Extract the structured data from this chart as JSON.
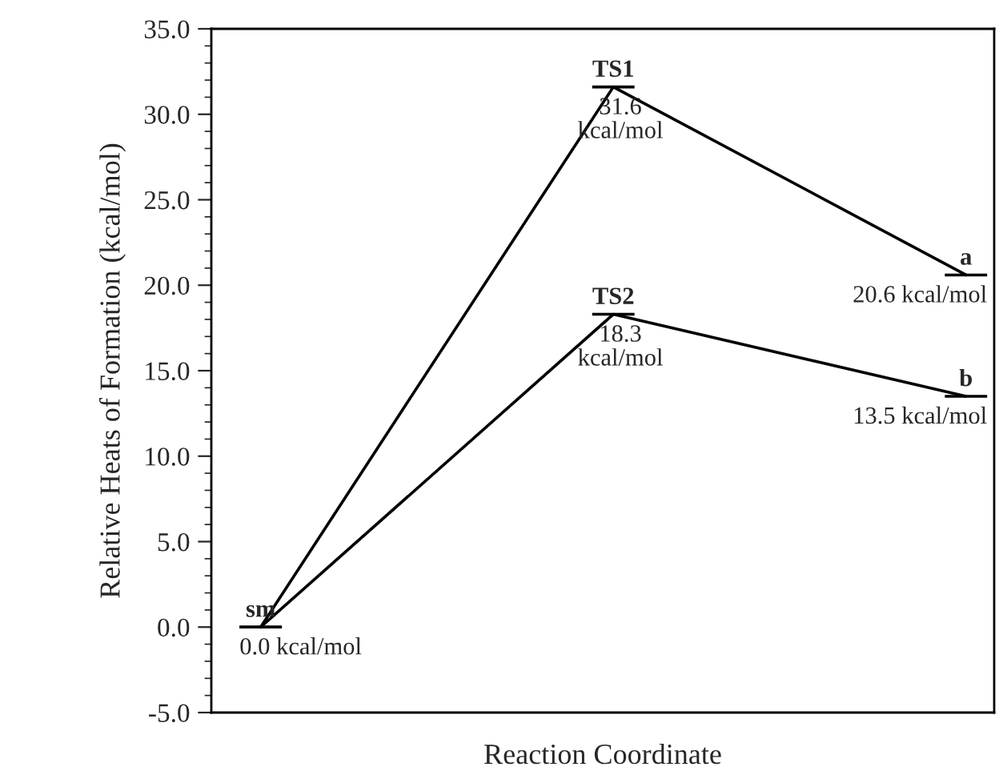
{
  "chart_data": {
    "type": "line",
    "xlabel": "Reaction Coordinate",
    "ylabel": "Relative Heats of Formation (kcal/mol)",
    "categories": [
      null,
      null,
      null
    ],
    "series": [
      {
        "color": "#000000",
        "values": [
          0.0,
          31.6,
          20.6
        ],
        "value_labels": [
          "0.0 kcal/mol",
          "31.6\nkcal/mol",
          "20.6 kcal/mol"
        ]
      },
      {
        "color": "#000000",
        "values": [
          0.0,
          18.3,
          13.5
        ],
        "value_labels": [
          null,
          "18.3\nkcal/mol",
          "13.5 kcal/mol"
        ]
      }
    ],
    "annotations": [
      {
        "text": "sm",
        "y": 0.0
      },
      {
        "text": "TS1",
        "y": 31.6
      },
      {
        "text": "a",
        "y": 20.6
      },
      {
        "text": "TS2",
        "y": 18.3
      },
      {
        "text": "b",
        "y": 13.5
      }
    ],
    "ylim": [
      -5,
      35
    ],
    "yticks": [
      {
        "value": -5,
        "label": "-5.0"
      },
      {
        "value": 0,
        "label": "0.0"
      },
      {
        "value": 5,
        "label": "5.0"
      },
      {
        "value": 10,
        "label": "10.0"
      },
      {
        "value": 15,
        "label": "15.0"
      },
      {
        "value": 20,
        "label": "20.0"
      },
      {
        "value": 25,
        "label": "25.0"
      },
      {
        "value": 30,
        "label": "30.0"
      },
      {
        "value": 35,
        "label": "35.0"
      }
    ],
    "tick_labels": "y",
    "grid": false,
    "legend": false,
    "marker": "none",
    "line_style": "solid"
  }
}
